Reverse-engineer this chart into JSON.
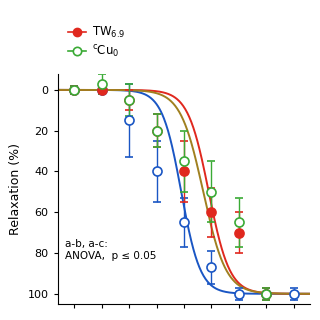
{
  "ylabel": "Relaxation (%)",
  "ylim_bottom": 105,
  "ylim_top": -8,
  "yticks": [
    0,
    20,
    40,
    60,
    80,
    100
  ],
  "annotation": "a-b, a-c:\nANOVA,  p ≤ 0.05",
  "blue_x": [
    -9.0,
    -8.5,
    -8.0,
    -7.5,
    -7.0,
    -6.5,
    -6.0,
    -5.5,
    -5.0
  ],
  "blue_y": [
    0,
    0,
    15,
    40,
    65,
    87,
    100,
    100,
    100
  ],
  "blue_err": [
    2,
    2,
    18,
    15,
    12,
    8,
    3,
    3,
    3
  ],
  "red_x": [
    -9.0,
    -8.5,
    -8.0,
    -7.5,
    -7.0,
    -6.5,
    -6.0,
    -5.5
  ],
  "red_y": [
    0,
    0,
    5,
    20,
    40,
    60,
    70,
    100
  ],
  "red_err": [
    2,
    2,
    5,
    8,
    15,
    12,
    10,
    3
  ],
  "green_x": [
    -9.0,
    -8.5,
    -8.0,
    -7.5,
    -7.0,
    -6.5,
    -6.0,
    -5.5
  ],
  "green_y": [
    0,
    -3,
    5,
    20,
    35,
    50,
    65,
    100
  ],
  "green_err": [
    2,
    5,
    8,
    8,
    15,
    15,
    12,
    3
  ],
  "blue_color": "#1a56c4",
  "red_color": "#e0281e",
  "green_color": "#3aaa35",
  "fit_blue_ec50": -7.05,
  "fit_blue_hill": 2.5,
  "fit_red_ec50": -6.55,
  "fit_red_hill": 2.3,
  "fit_green_ec50": -6.65,
  "fit_green_hill": 2.1,
  "fit_green_color": "#a08020",
  "xlim_left": -9.3,
  "xlim_right": -4.7,
  "xticks": [
    -9.0,
    -8.5,
    -8.0,
    -7.5,
    -7.0,
    -6.5,
    -6.0,
    -5.5,
    -5.0
  ]
}
